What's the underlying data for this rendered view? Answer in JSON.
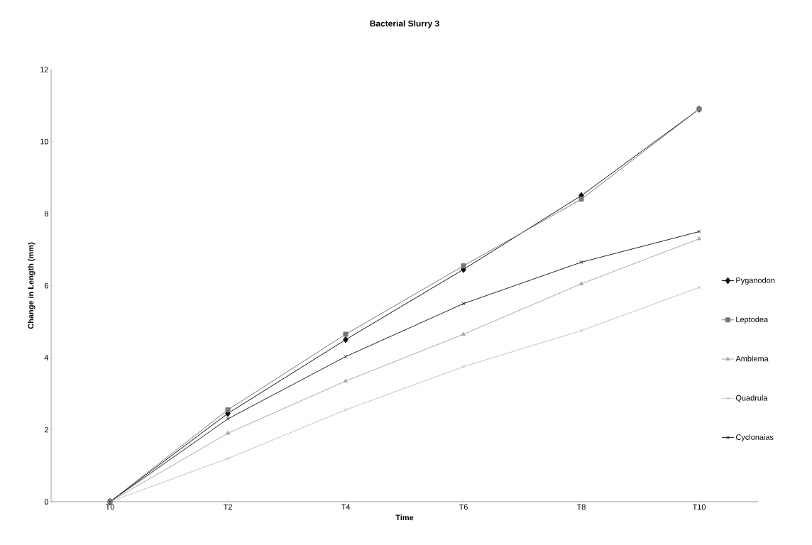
{
  "chart_data": {
    "type": "line",
    "title": "Bacterial Slurry 3",
    "xlabel": "Time",
    "ylabel": "Change in Length (mm)",
    "categories": [
      "T0",
      "T2",
      "T4",
      "T6",
      "T8",
      "T10"
    ],
    "series": [
      {
        "name": "Pyganodon",
        "color": "#111111",
        "marker": "diamond",
        "values": [
          0,
          2.45,
          4.5,
          6.45,
          8.5,
          10.9
        ]
      },
      {
        "name": "Leptodea",
        "color": "#777777",
        "marker": "square",
        "values": [
          0,
          2.55,
          4.65,
          6.55,
          8.4,
          10.9
        ]
      },
      {
        "name": "Amblema",
        "color": "#a8a8a8",
        "marker": "triangle",
        "values": [
          0,
          1.9,
          3.35,
          4.65,
          6.05,
          7.3
        ]
      },
      {
        "name": "Quadrula",
        "color": "#c4c4c4",
        "marker": "cross",
        "values": [
          0,
          1.2,
          2.55,
          3.75,
          4.75,
          5.95
        ]
      },
      {
        "name": "Cyclonaias",
        "color": "#222222",
        "marker": "cross",
        "values": [
          0,
          2.3,
          4.03,
          5.5,
          6.65,
          7.5
        ]
      }
    ],
    "ylim": [
      0,
      12
    ],
    "yticks": [
      0,
      2,
      4,
      6,
      8,
      10,
      12
    ],
    "legend": "right",
    "grid": false
  }
}
